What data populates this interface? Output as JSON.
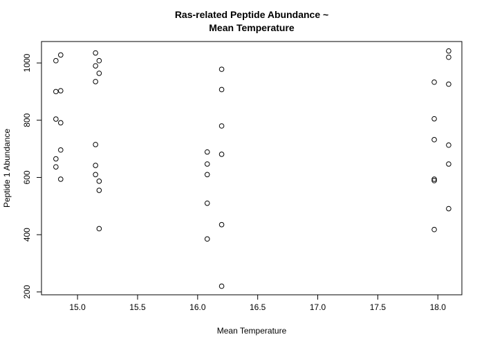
{
  "chart_data": {
    "type": "scatter",
    "title_line1": "Ras-related Peptide Abundance ~",
    "title_line2": "Mean Temperature",
    "xlabel": "Mean Temperature",
    "ylabel": "Peptide 1 Abundance",
    "xlim": [
      14.7,
      18.2
    ],
    "ylim": [
      190,
      1075
    ],
    "xticks": [
      15.0,
      15.5,
      16.0,
      16.5,
      17.0,
      17.5,
      18.0
    ],
    "xtick_labels": [
      "15.0",
      "15.5",
      "16.0",
      "16.5",
      "17.0",
      "17.5",
      "18.0"
    ],
    "yticks": [
      200,
      400,
      600,
      800,
      1000
    ],
    "ytick_labels": [
      "200",
      "400",
      "600",
      "800",
      "1000"
    ],
    "grid": false,
    "marker": "open-circle",
    "points": [
      {
        "x": 14.82,
        "y": 1008
      },
      {
        "x": 14.82,
        "y": 900
      },
      {
        "x": 14.82,
        "y": 804
      },
      {
        "x": 14.82,
        "y": 665
      },
      {
        "x": 14.82,
        "y": 637
      },
      {
        "x": 14.86,
        "y": 1028
      },
      {
        "x": 14.86,
        "y": 903
      },
      {
        "x": 14.86,
        "y": 791
      },
      {
        "x": 14.86,
        "y": 696
      },
      {
        "x": 14.86,
        "y": 594
      },
      {
        "x": 15.15,
        "y": 1035
      },
      {
        "x": 15.15,
        "y": 990
      },
      {
        "x": 15.15,
        "y": 935
      },
      {
        "x": 15.15,
        "y": 715
      },
      {
        "x": 15.15,
        "y": 642
      },
      {
        "x": 15.15,
        "y": 610
      },
      {
        "x": 15.18,
        "y": 1008
      },
      {
        "x": 15.18,
        "y": 964
      },
      {
        "x": 15.18,
        "y": 587
      },
      {
        "x": 15.18,
        "y": 555
      },
      {
        "x": 15.18,
        "y": 421
      },
      {
        "x": 16.08,
        "y": 689
      },
      {
        "x": 16.08,
        "y": 647
      },
      {
        "x": 16.08,
        "y": 610
      },
      {
        "x": 16.08,
        "y": 510
      },
      {
        "x": 16.08,
        "y": 385
      },
      {
        "x": 16.2,
        "y": 978
      },
      {
        "x": 16.2,
        "y": 907
      },
      {
        "x": 16.2,
        "y": 780
      },
      {
        "x": 16.2,
        "y": 681
      },
      {
        "x": 16.2,
        "y": 435
      },
      {
        "x": 16.2,
        "y": 220
      },
      {
        "x": 17.97,
        "y": 933
      },
      {
        "x": 17.97,
        "y": 805
      },
      {
        "x": 17.97,
        "y": 732
      },
      {
        "x": 17.97,
        "y": 594
      },
      {
        "x": 17.97,
        "y": 589
      },
      {
        "x": 17.97,
        "y": 418
      },
      {
        "x": 18.09,
        "y": 1042
      },
      {
        "x": 18.09,
        "y": 1020
      },
      {
        "x": 18.09,
        "y": 926
      },
      {
        "x": 18.09,
        "y": 713
      },
      {
        "x": 18.09,
        "y": 647
      },
      {
        "x": 18.09,
        "y": 491
      }
    ]
  }
}
